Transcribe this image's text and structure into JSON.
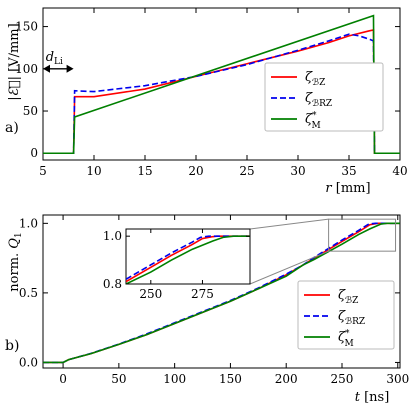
{
  "chart_data": [
    {
      "type": "line",
      "panel_label": "a)",
      "xlabel": "r [mm]",
      "ylabel": "|E| [V/mm]",
      "xlim": [
        5,
        40
      ],
      "ylim": [
        -8,
        172
      ],
      "xticks": [
        5,
        10,
        15,
        20,
        25,
        30,
        35,
        40
      ],
      "yticks": [
        0,
        50,
        100,
        150
      ],
      "annotation": {
        "text": "dLi",
        "x_from": 5.0,
        "x_to": 8.0,
        "y": 100
      },
      "legend": {
        "position": "right",
        "entries": [
          "ζBZ",
          "ζBRZ",
          "ζ*M"
        ]
      },
      "series": [
        {
          "name": "ζBZ",
          "color": "#ff0000",
          "dash": "solid",
          "x": [
            5,
            7.9,
            8.0,
            8.1,
            10,
            15,
            20,
            25,
            30,
            33,
            35,
            37,
            37.4,
            37.5,
            38,
            40
          ],
          "y": [
            0,
            0,
            0,
            67,
            67,
            76,
            91,
            106,
            121,
            131,
            139,
            145,
            146,
            0,
            0,
            0
          ]
        },
        {
          "name": "ζBRZ",
          "color": "#0000ee",
          "dash": "dashed",
          "x": [
            5,
            7.9,
            8.0,
            8.1,
            10,
            15,
            20,
            25,
            30,
            33,
            35,
            36,
            37,
            37.4,
            37.5,
            38,
            40
          ],
          "y": [
            0,
            0,
            0,
            74,
            73,
            80,
            91,
            105,
            122,
            133,
            141,
            139,
            135,
            133,
            0,
            0,
            0
          ]
        },
        {
          "name": "ζ*M",
          "color": "#008000",
          "dash": "solid",
          "x": [
            5,
            7.9,
            8.0,
            8.1,
            37.4,
            37.5,
            38,
            40
          ],
          "y": [
            0,
            0,
            0,
            43,
            163,
            0,
            0,
            0
          ]
        }
      ]
    },
    {
      "type": "line",
      "panel_label": "b)",
      "xlabel": "t [ns]",
      "ylabel": "norm. Q1",
      "xlim": [
        -18,
        302
      ],
      "ylim": [
        -0.04,
        1.06
      ],
      "xticks": [
        0,
        50,
        100,
        150,
        200,
        250,
        300
      ],
      "yticks": [
        0.0,
        0.5,
        1.0
      ],
      "legend": {
        "position": "bottom-right",
        "entries": [
          "ζBZ",
          "ζBRZ",
          "ζ*M"
        ]
      },
      "series": [
        {
          "name": "ζBZ",
          "color": "#ff0000",
          "dash": "solid",
          "x": [
            -18,
            0,
            5,
            25,
            50,
            75,
            100,
            125,
            150,
            175,
            200,
            215,
            225,
            250,
            265,
            275,
            282,
            290,
            302
          ],
          "y": [
            0,
            0,
            0.02,
            0.063,
            0.13,
            0.2,
            0.28,
            0.36,
            0.44,
            0.53,
            0.63,
            0.7,
            0.75,
            0.87,
            0.94,
            0.99,
            1.0,
            1.0,
            1.0
          ]
        },
        {
          "name": "ζBRZ",
          "color": "#0000ee",
          "dash": "dashed",
          "x": [
            -18,
            0,
            5,
            25,
            50,
            75,
            100,
            125,
            150,
            175,
            200,
            215,
            225,
            250,
            265,
            274,
            280,
            290,
            302
          ],
          "y": [
            0,
            0,
            0.02,
            0.065,
            0.132,
            0.205,
            0.285,
            0.365,
            0.445,
            0.535,
            0.635,
            0.7,
            0.755,
            0.88,
            0.95,
            0.995,
            1.0,
            1.0,
            1.0
          ]
        },
        {
          "name": "ζ*M",
          "color": "#008000",
          "dash": "solid",
          "x": [
            -18,
            0,
            5,
            25,
            50,
            75,
            100,
            125,
            150,
            175,
            200,
            215,
            225,
            250,
            265,
            275,
            285,
            290,
            302
          ],
          "y": [
            0,
            0,
            0.02,
            0.063,
            0.13,
            0.2,
            0.28,
            0.36,
            0.44,
            0.53,
            0.62,
            0.7,
            0.74,
            0.85,
            0.92,
            0.96,
            0.995,
            1.0,
            1.0
          ]
        }
      ],
      "inset": {
        "xlim": [
          238,
          298
        ],
        "ylim": [
          0.8,
          1.03
        ],
        "xticks": [
          250,
          275
        ],
        "yticks": [
          0.8,
          1.0
        ],
        "series_x": {
          "ζBZ": [
            238,
            250,
            260,
            270,
            275,
            280,
            282,
            290,
            298
          ],
          "ζBRZ": [
            238,
            250,
            260,
            270,
            274,
            278,
            280,
            290,
            298
          ],
          "ζ*M": [
            238,
            250,
            260,
            270,
            280,
            285,
            290,
            298
          ]
        },
        "series_y": {
          "ζBZ": [
            0.81,
            0.87,
            0.92,
            0.965,
            0.99,
            0.998,
            1.0,
            1.0,
            1.0
          ],
          "ζBRZ": [
            0.82,
            0.88,
            0.93,
            0.975,
            0.995,
            1.0,
            1.0,
            1.0,
            1.0
          ],
          "ζ*M": [
            0.8,
            0.85,
            0.9,
            0.945,
            0.98,
            0.995,
            1.0,
            1.0
          ]
        }
      }
    }
  ]
}
